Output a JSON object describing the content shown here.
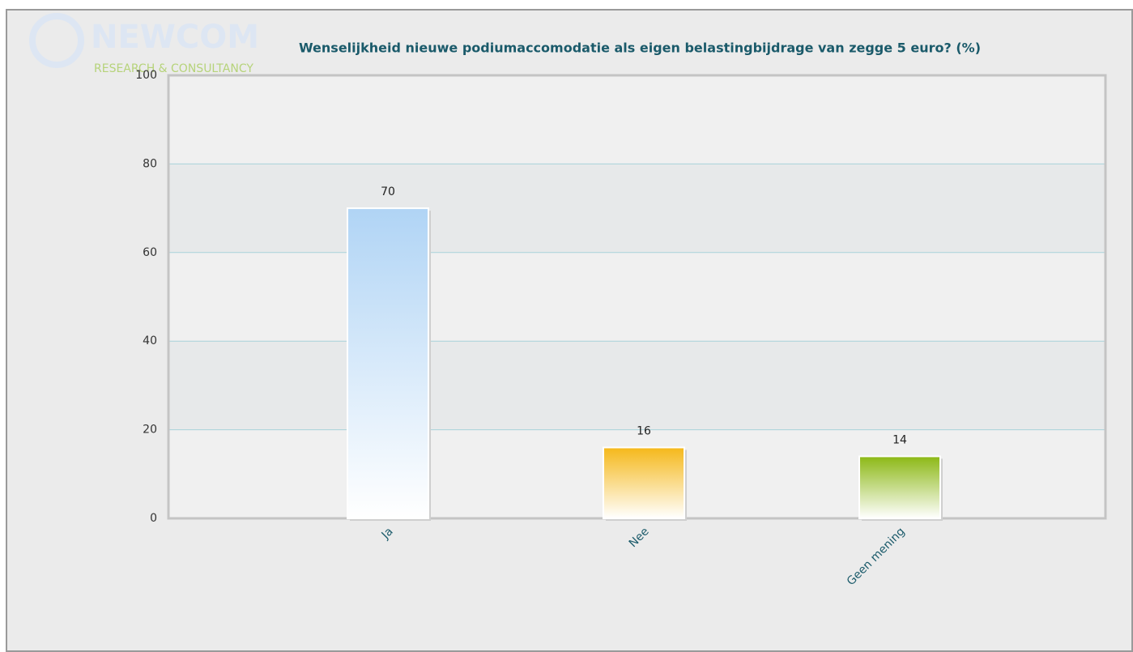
{
  "chart_data": {
    "type": "bar",
    "logo": "NEWCOM",
    "logo_subtitle": "RESEARCH & CONSULTANCY",
    "title": "Wenselijkheid nieuwe podiumaccomodatie als eigen belastingbijdrage van zegge 5 euro? (%)",
    "categories": [
      "Ja",
      "Nee",
      "Geen mening"
    ],
    "values": [
      70,
      16,
      14
    ],
    "colors": [
      "#b0d4f5",
      "#f5b81a",
      "#8cb815"
    ],
    "ylim": [
      0,
      100
    ],
    "yticks": [
      0,
      20,
      40,
      60,
      80,
      100
    ],
    "grid": true
  }
}
